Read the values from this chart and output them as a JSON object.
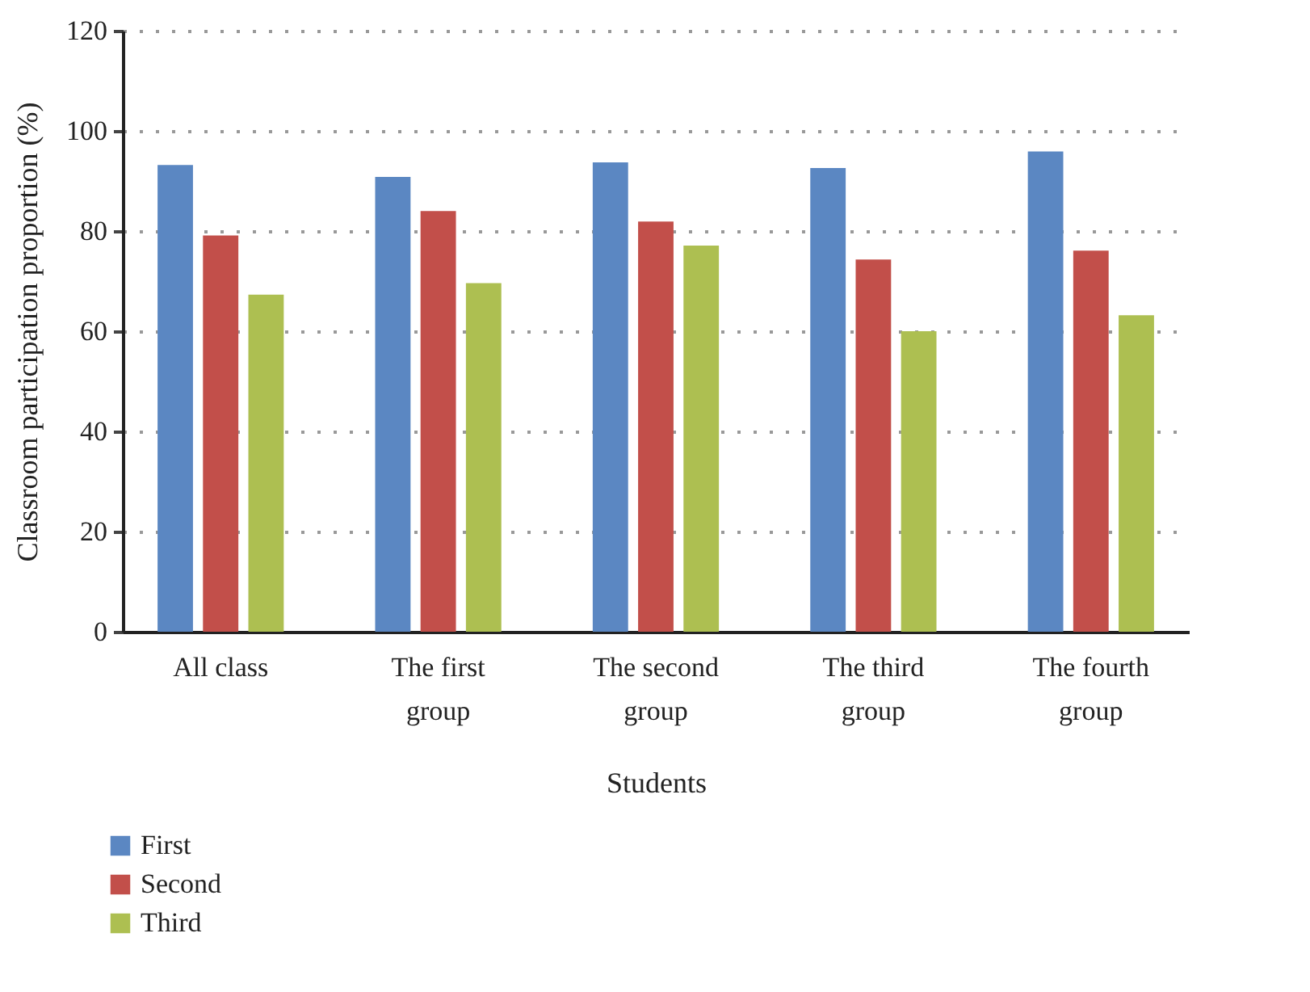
{
  "chart_data": {
    "type": "bar",
    "xlabel": "Students",
    "ylabel": "Classroom participation proportion (%)",
    "categories": [
      "All class",
      "The first group",
      "The second group",
      "The third group",
      "The fourth group"
    ],
    "series": [
      {
        "name": "First",
        "color": "#5b87c2",
        "values": [
          93.2,
          90.8,
          93.7,
          92.6,
          95.9
        ]
      },
      {
        "name": "Second",
        "color": "#c24f4a",
        "values": [
          79.1,
          84,
          81.9,
          74.3,
          76.1
        ]
      },
      {
        "name": "Third",
        "color": "#adbf51",
        "values": [
          67.3,
          69.6,
          77.1,
          60,
          63.2
        ]
      }
    ],
    "ylim": [
      0,
      120
    ],
    "yticks": [
      0,
      20,
      40,
      60,
      80,
      100,
      120
    ],
    "grid": "y",
    "legend": "bottom left"
  }
}
